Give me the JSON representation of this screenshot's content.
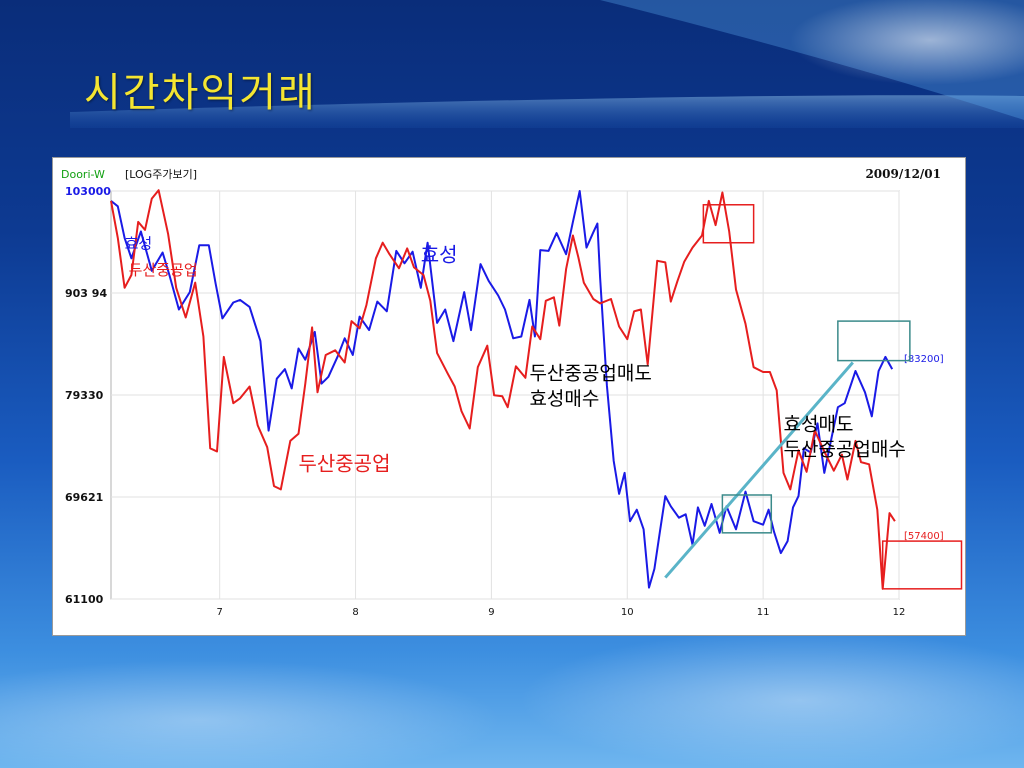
{
  "slide": {
    "title": "시간차익거래"
  },
  "chart_header": {
    "source_label": "Doori-W",
    "mode_label": "[LOG주가보기]",
    "date_label": "2009/12/01"
  },
  "colors": {
    "hyosung": "#1a1ae6",
    "doosan": "#e61e1e",
    "trend_line": "#5ab4c8",
    "highlight_box_teal": "#3a8a8a",
    "highlight_box_red": "#e61e1e"
  },
  "chart_data": {
    "type": "line",
    "title": "",
    "xlabel": "",
    "ylabel": "",
    "scale": "log",
    "ylim": [
      61100,
      103000
    ],
    "y_ticks": [
      103000,
      90394,
      79330,
      69621,
      61100
    ],
    "y_tick_labels": [
      "103000",
      "903 94",
      "79330",
      "69621",
      "61100"
    ],
    "xlim": [
      6.2,
      12.0
    ],
    "x_ticks": [
      7,
      8,
      9,
      10,
      11,
      12
    ],
    "x_tick_labels": [
      "7",
      "8",
      "9",
      "10",
      "11",
      "12"
    ],
    "grid": true,
    "series": [
      {
        "name": "효성",
        "color": "#1a1ae6",
        "points": [
          [
            6.2,
            101700
          ],
          [
            6.25,
            101000
          ],
          [
            6.3,
            97000
          ],
          [
            6.35,
            94500
          ],
          [
            6.42,
            97800
          ],
          [
            6.5,
            93000
          ],
          [
            6.58,
            95200
          ],
          [
            6.63,
            92500
          ],
          [
            6.7,
            88500
          ],
          [
            6.78,
            90500
          ],
          [
            6.85,
            96100
          ],
          [
            6.92,
            96100
          ],
          [
            6.97,
            91500
          ],
          [
            7.02,
            87500
          ],
          [
            7.1,
            89300
          ],
          [
            7.15,
            89600
          ],
          [
            7.22,
            88800
          ],
          [
            7.3,
            85000
          ],
          [
            7.36,
            75800
          ],
          [
            7.42,
            81000
          ],
          [
            7.48,
            82000
          ],
          [
            7.53,
            80000
          ],
          [
            7.58,
            84200
          ],
          [
            7.63,
            83000
          ],
          [
            7.7,
            86000
          ],
          [
            7.75,
            80500
          ],
          [
            7.8,
            81200
          ],
          [
            7.87,
            83400
          ],
          [
            7.92,
            85300
          ],
          [
            7.98,
            83500
          ],
          [
            8.03,
            87700
          ],
          [
            8.1,
            86200
          ],
          [
            8.16,
            89400
          ],
          [
            8.23,
            88300
          ],
          [
            8.3,
            95400
          ],
          [
            8.36,
            93900
          ],
          [
            8.42,
            95300
          ],
          [
            8.48,
            91000
          ],
          [
            8.53,
            96400
          ],
          [
            8.6,
            87000
          ],
          [
            8.66,
            88500
          ],
          [
            8.72,
            85000
          ],
          [
            8.8,
            90500
          ],
          [
            8.85,
            86200
          ],
          [
            8.92,
            93800
          ],
          [
            8.98,
            91800
          ],
          [
            9.05,
            90100
          ],
          [
            9.1,
            88500
          ],
          [
            9.16,
            85300
          ],
          [
            9.22,
            85500
          ],
          [
            9.28,
            89600
          ],
          [
            9.32,
            85500
          ],
          [
            9.36,
            95500
          ],
          [
            9.42,
            95400
          ],
          [
            9.48,
            97600
          ],
          [
            9.55,
            95000
          ],
          [
            9.6,
            99000
          ],
          [
            9.65,
            103000
          ],
          [
            9.7,
            95800
          ],
          [
            9.75,
            97700
          ],
          [
            9.78,
            98800
          ],
          [
            9.8,
            92200
          ],
          [
            9.85,
            80300
          ],
          [
            9.9,
            72900
          ],
          [
            9.94,
            69900
          ],
          [
            9.98,
            71800
          ],
          [
            10.02,
            67500
          ],
          [
            10.07,
            68500
          ],
          [
            10.12,
            66800
          ],
          [
            10.16,
            62000
          ],
          [
            10.2,
            63500
          ],
          [
            10.24,
            66600
          ],
          [
            10.28,
            69700
          ],
          [
            10.32,
            68800
          ],
          [
            10.38,
            67800
          ],
          [
            10.43,
            68100
          ],
          [
            10.48,
            65500
          ],
          [
            10.52,
            68700
          ],
          [
            10.57,
            67100
          ],
          [
            10.62,
            69000
          ],
          [
            10.68,
            66500
          ],
          [
            10.73,
            68800
          ],
          [
            10.8,
            66800
          ],
          [
            10.87,
            70100
          ],
          [
            10.93,
            67500
          ],
          [
            11.0,
            67200
          ],
          [
            11.04,
            68500
          ],
          [
            11.08,
            66600
          ],
          [
            11.13,
            64800
          ],
          [
            11.18,
            65800
          ],
          [
            11.22,
            68700
          ],
          [
            11.26,
            69700
          ],
          [
            11.3,
            74100
          ],
          [
            11.35,
            73700
          ],
          [
            11.4,
            76500
          ],
          [
            11.45,
            71800
          ],
          [
            11.5,
            74900
          ],
          [
            11.55,
            78100
          ],
          [
            11.6,
            78500
          ],
          [
            11.68,
            81800
          ],
          [
            11.75,
            79600
          ],
          [
            11.8,
            77200
          ],
          [
            11.85,
            81800
          ],
          [
            11.9,
            83300
          ],
          [
            11.95,
            82000
          ]
        ]
      },
      {
        "name": "두산중공업",
        "color": "#e61e1e",
        "points": [
          [
            6.2,
            101700
          ],
          [
            6.25,
            97000
          ],
          [
            6.3,
            91000
          ],
          [
            6.35,
            92500
          ],
          [
            6.4,
            99000
          ],
          [
            6.45,
            98000
          ],
          [
            6.5,
            102000
          ],
          [
            6.55,
            103100
          ],
          [
            6.62,
            97500
          ],
          [
            6.68,
            91000
          ],
          [
            6.75,
            87600
          ],
          [
            6.82,
            91600
          ],
          [
            6.88,
            85500
          ],
          [
            6.93,
            74100
          ],
          [
            6.98,
            73800
          ],
          [
            7.03,
            83300
          ],
          [
            7.1,
            78500
          ],
          [
            7.15,
            79000
          ],
          [
            7.22,
            80200
          ],
          [
            7.28,
            76300
          ],
          [
            7.35,
            74200
          ],
          [
            7.4,
            70600
          ],
          [
            7.45,
            70300
          ],
          [
            7.52,
            74800
          ],
          [
            7.58,
            75500
          ],
          [
            7.63,
            80500
          ],
          [
            7.68,
            86500
          ],
          [
            7.72,
            79600
          ],
          [
            7.78,
            83500
          ],
          [
            7.85,
            84000
          ],
          [
            7.92,
            82700
          ],
          [
            7.97,
            87200
          ],
          [
            8.03,
            86400
          ],
          [
            8.08,
            89000
          ],
          [
            8.15,
            94500
          ],
          [
            8.2,
            96400
          ],
          [
            8.25,
            95000
          ],
          [
            8.32,
            93300
          ],
          [
            8.38,
            95700
          ],
          [
            8.43,
            93400
          ],
          [
            8.5,
            92500
          ],
          [
            8.55,
            89500
          ],
          [
            8.6,
            83700
          ],
          [
            8.68,
            81500
          ],
          [
            8.73,
            80200
          ],
          [
            8.78,
            77700
          ],
          [
            8.84,
            76000
          ],
          [
            8.9,
            82200
          ],
          [
            8.97,
            84500
          ],
          [
            9.02,
            79300
          ],
          [
            9.08,
            79200
          ],
          [
            9.12,
            78100
          ],
          [
            9.18,
            82300
          ],
          [
            9.25,
            81100
          ],
          [
            9.3,
            86600
          ],
          [
            9.36,
            85200
          ],
          [
            9.4,
            89500
          ],
          [
            9.46,
            89900
          ],
          [
            9.5,
            86700
          ],
          [
            9.55,
            93200
          ],
          [
            9.6,
            97300
          ],
          [
            9.64,
            94600
          ],
          [
            9.68,
            91600
          ],
          [
            9.75,
            89700
          ],
          [
            9.8,
            89200
          ],
          [
            9.88,
            89700
          ],
          [
            9.94,
            86600
          ],
          [
            10.0,
            85200
          ],
          [
            10.05,
            88300
          ],
          [
            10.1,
            88500
          ],
          [
            10.15,
            82500
          ],
          [
            10.22,
            94200
          ],
          [
            10.28,
            94000
          ],
          [
            10.32,
            89400
          ],
          [
            10.37,
            91800
          ],
          [
            10.42,
            94100
          ],
          [
            10.48,
            95800
          ],
          [
            10.55,
            97300
          ],
          [
            10.6,
            101700
          ],
          [
            10.65,
            98600
          ],
          [
            10.7,
            102800
          ],
          [
            10.75,
            97800
          ],
          [
            10.8,
            90800
          ],
          [
            10.87,
            86900
          ],
          [
            10.93,
            82200
          ],
          [
            11.0,
            81700
          ],
          [
            11.05,
            81700
          ],
          [
            11.1,
            79800
          ],
          [
            11.15,
            71800
          ],
          [
            11.2,
            70300
          ],
          [
            11.26,
            73900
          ],
          [
            11.32,
            71900
          ],
          [
            11.38,
            75800
          ],
          [
            11.45,
            73800
          ],
          [
            11.52,
            72000
          ],
          [
            11.58,
            73500
          ],
          [
            11.62,
            71200
          ],
          [
            11.68,
            74800
          ],
          [
            11.72,
            72800
          ],
          [
            11.78,
            72600
          ],
          [
            11.84,
            68500
          ],
          [
            11.88,
            61900
          ],
          [
            11.93,
            68200
          ],
          [
            11.97,
            67500
          ]
        ]
      }
    ],
    "end_value_labels": [
      {
        "series": "효성",
        "label": "[83200]"
      },
      {
        "series": "두산중공업",
        "label": "[57400]"
      }
    ],
    "annotations": [
      {
        "text": "효성",
        "color": "#1a1ae6",
        "x": 8.48,
        "y": 94100,
        "size": 20
      },
      {
        "text": "두산중공업",
        "color": "#e61e1e",
        "x": 7.58,
        "y": 72000,
        "size": 20
      },
      {
        "text": "두산중공업매도",
        "color": "#000000",
        "x": 9.28,
        "y": 80900,
        "size": 19
      },
      {
        "text": "효성매수",
        "color": "#000000",
        "x": 9.28,
        "y": 78300,
        "size": 19
      },
      {
        "text": "효성매도",
        "color": "#000000",
        "x": 11.15,
        "y": 75800,
        "size": 19
      },
      {
        "text": "두산중공업매수",
        "color": "#000000",
        "x": 11.15,
        "y": 73400,
        "size": 19
      },
      {
        "text": "효성",
        "color": "#1a1ae6",
        "x": 6.3,
        "y": 95700,
        "size": 15
      },
      {
        "text": "두산중공업",
        "color": "#e61e1e",
        "x": 6.33,
        "y": 92500,
        "size": 15
      }
    ]
  }
}
